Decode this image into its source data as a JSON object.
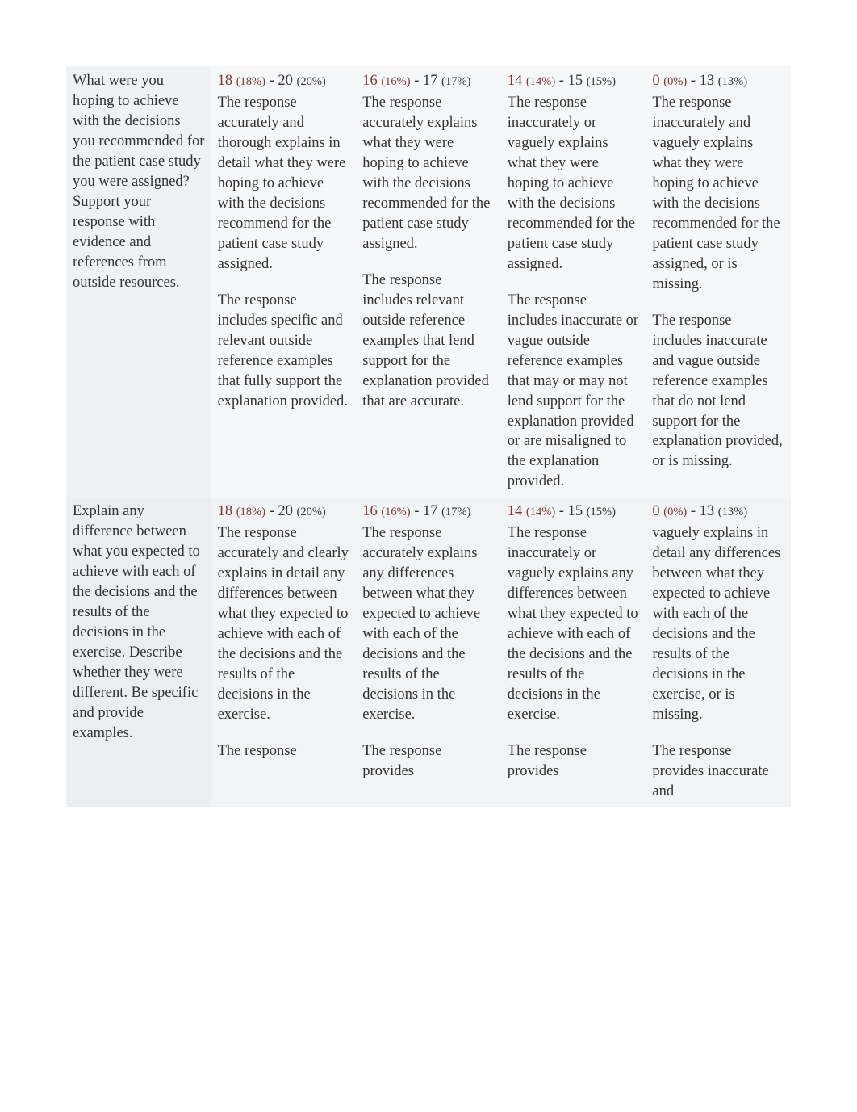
{
  "rows": [
    {
      "criteria": "What were you hoping to achieve with the decisions you recommended for the patient case study you were assigned? Support your response with evidence and references from outside resources.",
      "levels": [
        {
          "lo": "18",
          "lo_pct": "(18%)",
          "hi": "20",
          "hi_pct": "(20%)",
          "paras": [
            "The response accurately and thorough explains in detail what they were hoping to achieve with the decisions recommend for the patient case study assigned.",
            "The response includes specific and relevant outside reference examples that fully support the explanation provided."
          ]
        },
        {
          "lo": "16",
          "lo_pct": "(16%)",
          "hi": "17",
          "hi_pct": "(17%)",
          "paras": [
            "The response accurately explains what they were hoping to achieve with the decisions recommended for the patient case study assigned.",
            "The response includes relevant outside reference examples that lend support for the explanation provided that are accurate."
          ]
        },
        {
          "lo": "14",
          "lo_pct": "(14%)",
          "hi": "15",
          "hi_pct": "(15%)",
          "paras": [
            "The response inaccurately or vaguely explains what they were hoping to achieve with the decisions recommended for the patient case study assigned.",
            "The response includes inaccurate or vague outside reference examples that may or may not lend support for the explanation provided or are misaligned to the explanation provided."
          ]
        },
        {
          "lo": "0",
          "lo_pct": "(0%)",
          "hi": "13",
          "hi_pct": "(13%)",
          "paras": [
            "The response inaccurately and vaguely explains what they were hoping to achieve with the decisions recommended for the patient case study assigned, or is missing.",
            "The response includes inaccurate and vague outside reference examples that do not lend support for the explanation provided, or is missing."
          ]
        }
      ]
    },
    {
      "criteria": "Explain any difference between what you expected to achieve with each of the decisions and the results of the decisions in the exercise. Describe whether they were different. Be specific and provide examples.",
      "levels": [
        {
          "lo": "18",
          "lo_pct": "(18%)",
          "hi": "20",
          "hi_pct": "(20%)",
          "paras": [
            "The response accurately and clearly explains in detail any differences between what they expected to achieve with each of the decisions and the results of the decisions in the exercise.",
            "The response"
          ]
        },
        {
          "lo": "16",
          "lo_pct": "(16%)",
          "hi": "17",
          "hi_pct": "(17%)",
          "paras": [
            "The response accurately explains any differences between what they expected to achieve with each of the decisions and the results of the decisions in the exercise.",
            "The response provides"
          ]
        },
        {
          "lo": "14",
          "lo_pct": "(14%)",
          "hi": "15",
          "hi_pct": "(15%)",
          "paras": [
            "The response inaccurately or vaguely explains any differences between what they expected to achieve with each of the decisions and the results of the decisions in the exercise.",
            "The response provides"
          ]
        },
        {
          "lo": "0",
          "lo_pct": "(0%)",
          "hi": "13",
          "hi_pct": "(13%)",
          "paras": [
            "vaguely explains in detail any differences between what they expected to achieve with each of the decisions and the results of the decisions in the exercise, or is missing.",
            "The response provides inaccurate and"
          ]
        }
      ]
    }
  ],
  "colors": {
    "criteria_text": "#4a6a8a",
    "points_text": "#7a3a3a",
    "body_text": "#333333",
    "criteria_bg_r1": "#eef2f5",
    "level_bg_r1": "#f6f7f8",
    "criteria_bg_r2": "#e9eef2",
    "level_bg_r2": "#f1f3f4"
  }
}
